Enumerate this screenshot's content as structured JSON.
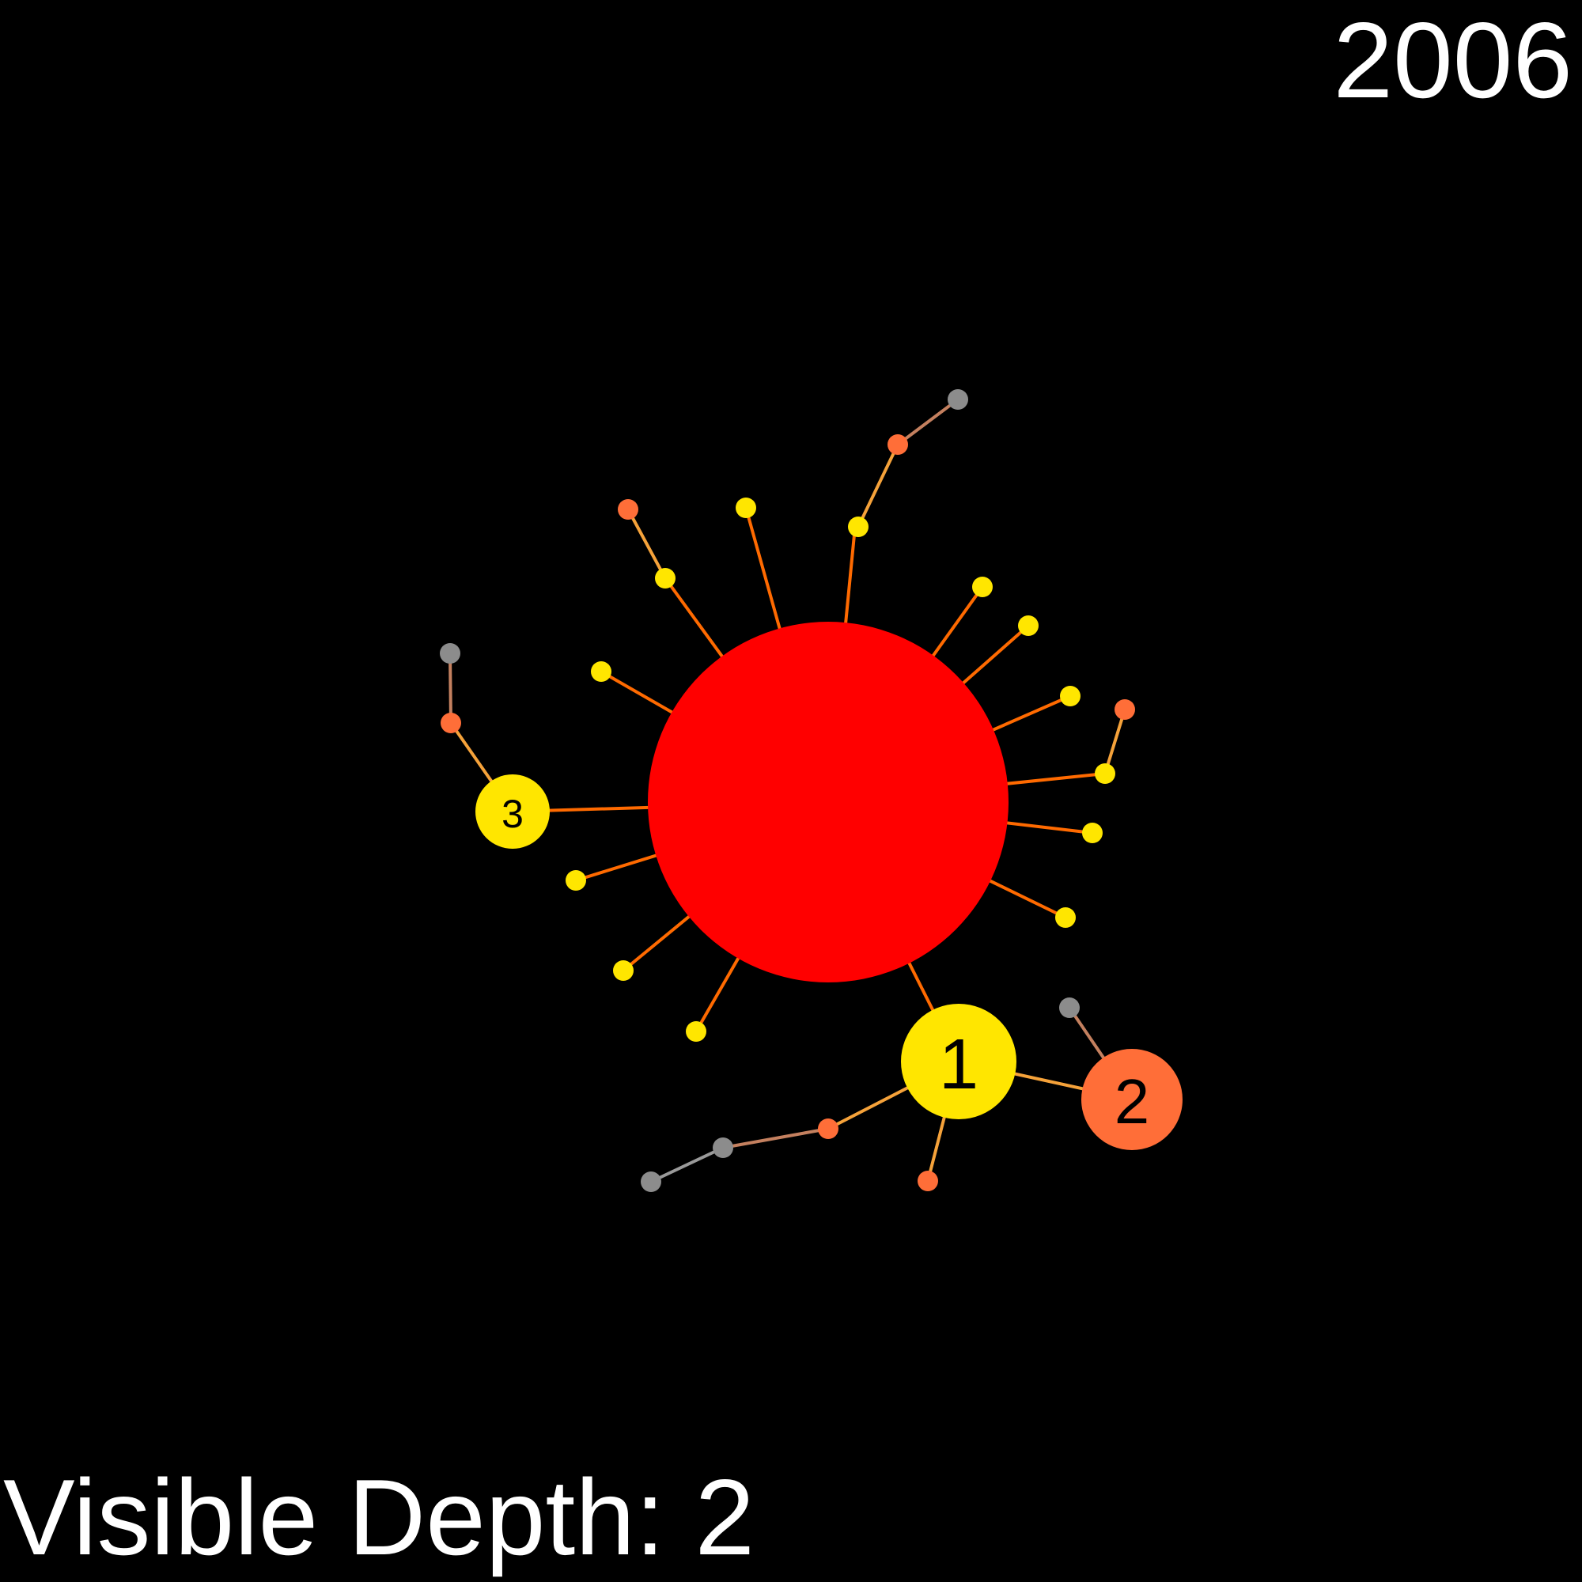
{
  "year": "2006",
  "depth_label": "Visible Depth: 2",
  "colors": {
    "background": "#000000",
    "root": "#ff0000",
    "level1": "#ffe600",
    "level2": "#ff6e38",
    "level3": "#8c8c8c",
    "edge_root": "#ff6a00",
    "edge_level1": "#f5a23a",
    "edge_level2": "#c4805f",
    "edge_level3": "#9a9a9a",
    "label_text": "#000000"
  },
  "ranked_nodes": [
    {
      "rank": "1",
      "node": "n1"
    },
    {
      "rank": "2",
      "node": "n2"
    },
    {
      "rank": "3",
      "node": "n3"
    }
  ]
}
